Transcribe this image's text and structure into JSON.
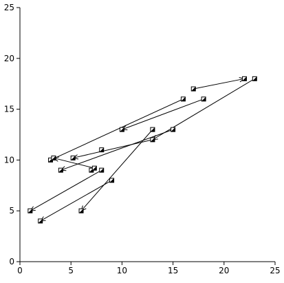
{
  "chart_data": {
    "type": "scatter",
    "title": "",
    "xlabel": "",
    "ylabel": "",
    "xlim": [
      0,
      25
    ],
    "ylim": [
      0,
      25
    ],
    "x_ticks": [
      0,
      5,
      10,
      15,
      20,
      25
    ],
    "y_ticks": [
      0,
      5,
      10,
      15,
      20,
      25
    ],
    "x_tick_labels": [
      "0",
      "5",
      "10",
      "15",
      "20",
      "25"
    ],
    "y_tick_labels": [
      "0",
      "5",
      "10",
      "15",
      "20",
      "25"
    ],
    "grid": false,
    "legend": "none",
    "marker": "half-filled-square",
    "arrows": true,
    "points": [
      {
        "x": 23,
        "y": 18
      },
      {
        "x": 17,
        "y": 17
      },
      {
        "x": 18,
        "y": 16
      },
      {
        "x": 16,
        "y": 16
      },
      {
        "x": 10,
        "y": 13
      },
      {
        "x": 13,
        "y": 13
      },
      {
        "x": 15,
        "y": 13
      },
      {
        "x": 13,
        "y": 12
      },
      {
        "x": 8,
        "y": 11
      },
      {
        "x": 5.2,
        "y": 10.2
      },
      {
        "x": 3,
        "y": 10
      },
      {
        "x": 3.3,
        "y": 10.2
      },
      {
        "x": 7,
        "y": 9
      },
      {
        "x": 7.3,
        "y": 9.2
      },
      {
        "x": 8,
        "y": 9
      },
      {
        "x": 4,
        "y": 9
      },
      {
        "x": 9,
        "y": 8
      },
      {
        "x": 1,
        "y": 5
      },
      {
        "x": 6,
        "y": 5
      },
      {
        "x": 2,
        "y": 4
      },
      {
        "x": 22,
        "y": 18
      }
    ],
    "segments": [
      {
        "from": [
          17,
          17
        ],
        "to": [
          22,
          18
        ]
      },
      {
        "from": [
          23,
          18
        ],
        "to": [
          13,
          12
        ]
      },
      {
        "from": [
          16,
          16
        ],
        "to": [
          3,
          10
        ]
      },
      {
        "from": [
          18,
          16
        ],
        "to": [
          10,
          13
        ]
      },
      {
        "from": [
          15,
          13
        ],
        "to": [
          4,
          9
        ]
      },
      {
        "from": [
          13,
          12
        ],
        "to": [
          5.2,
          10.2
        ]
      },
      {
        "from": [
          13,
          13
        ],
        "to": [
          6,
          5
        ]
      },
      {
        "from": [
          7.3,
          9.2
        ],
        "to": [
          3.3,
          10.2
        ]
      },
      {
        "from": [
          8,
          9
        ],
        "to": [
          1,
          5
        ]
      },
      {
        "from": [
          9,
          8
        ],
        "to": [
          2,
          4
        ]
      }
    ]
  }
}
